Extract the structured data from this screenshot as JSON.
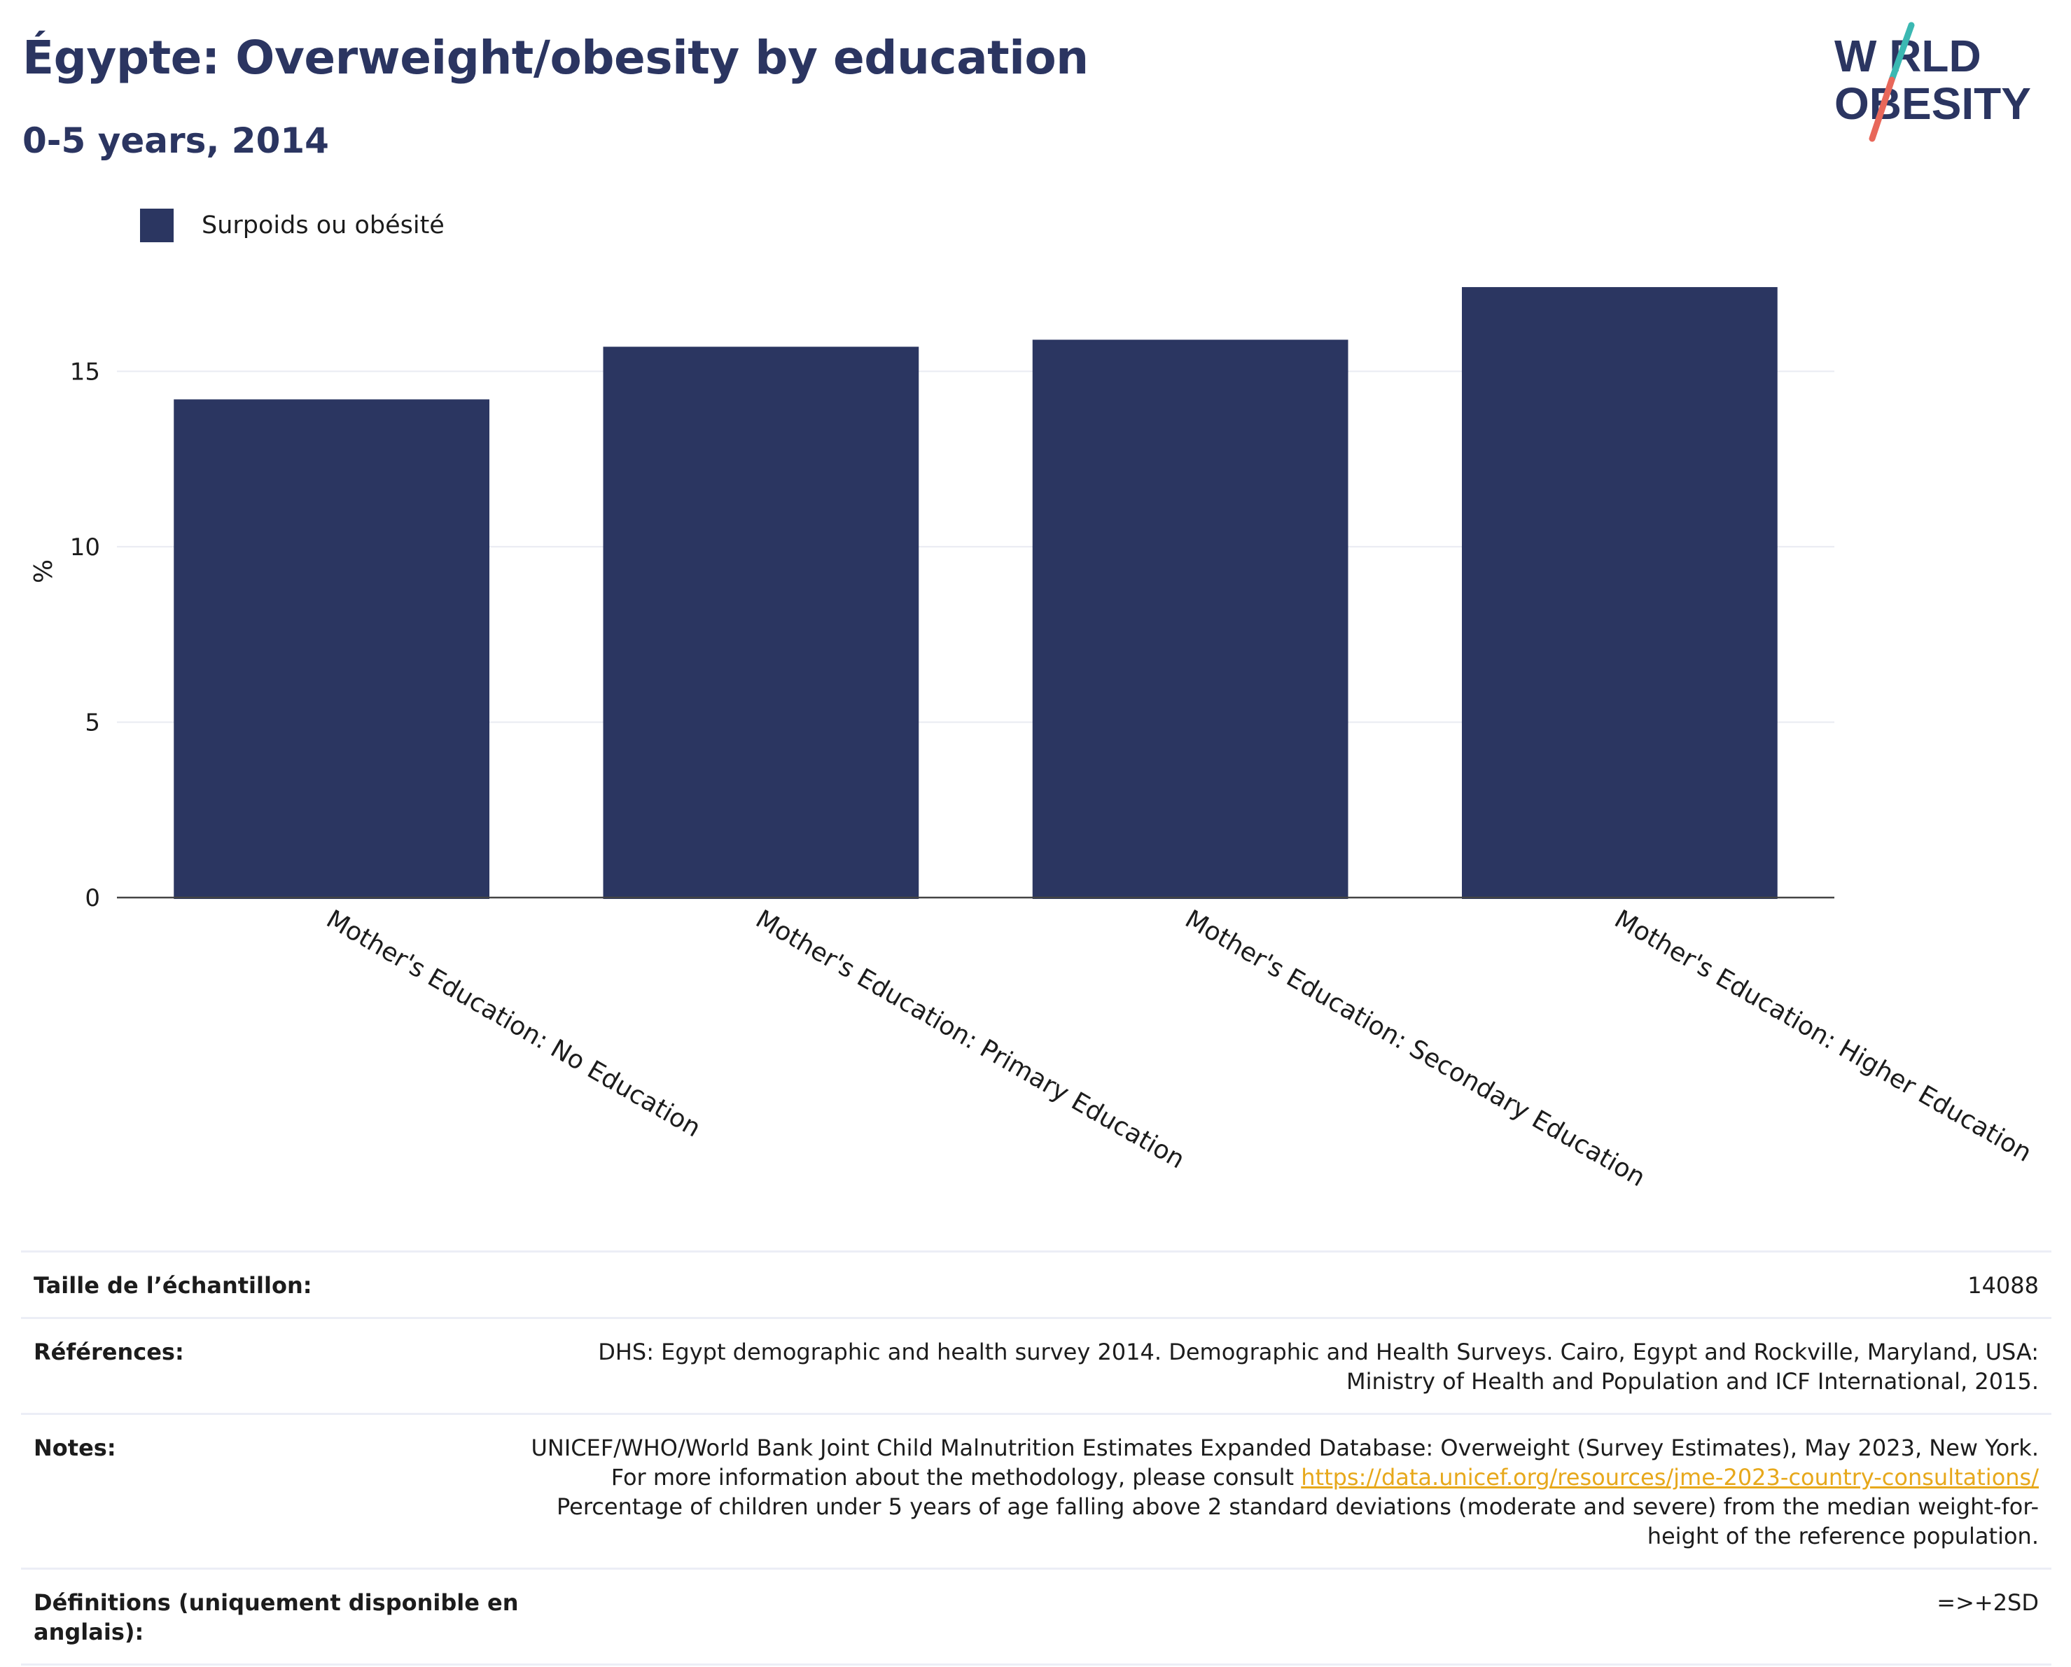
{
  "header": {
    "title": "Égypte: Overweight/obesity by education",
    "subtitle": "0-5 years, 2014"
  },
  "logo": {
    "line1": "W RLD",
    "line2": "OBESITY",
    "colors": {
      "text": "#2b3561",
      "slash_teal": "#3bb8b2",
      "slash_red": "#e8675a"
    }
  },
  "legend": {
    "label": "Surpoids ou obésité",
    "color": "#2b3661"
  },
  "chart_data": {
    "type": "bar",
    "categories": [
      "Mother's Education: No Education",
      "Mother's Education: Primary Education",
      "Mother's Education: Secondary Education",
      "Mother's Education: Higher Education"
    ],
    "series": [
      {
        "name": "Surpoids ou obésité",
        "values": [
          14.2,
          15.7,
          15.9,
          17.4
        ],
        "color": "#2b3661"
      }
    ],
    "ylabel": "%",
    "xlabel": "",
    "ylim": [
      0,
      18
    ],
    "yticks": [
      0,
      5,
      10,
      15
    ],
    "grid": true,
    "legend_position": "top-left"
  },
  "info": {
    "rows": [
      {
        "label": "Taille de l’échantillon:",
        "value": "14088"
      },
      {
        "label": "Références:",
        "value": "DHS: Egypt demographic and health survey 2014. Demographic and Health Surveys. Cairo, Egypt and Rockville, Maryland, USA: Ministry of Health and Population and ICF International, 2015."
      },
      {
        "label": "Notes:",
        "value_before_link": "UNICEF/WHO/World Bank Joint Child Malnutrition Estimates Expanded Database: Overweight (Survey Estimates), May 2023, New York. For more information about the methodology, please consult ",
        "link": "https://data.unicef.org/resources/jme-2023-country-consultations/",
        "value_after_link": " Percentage of children under 5 years of age falling above 2 standard deviations (moderate and severe) from the median weight-for-height of the reference population."
      },
      {
        "label": "Définitions (uniquement disponible en anglais):",
        "value": "=>+2SD"
      }
    ]
  }
}
